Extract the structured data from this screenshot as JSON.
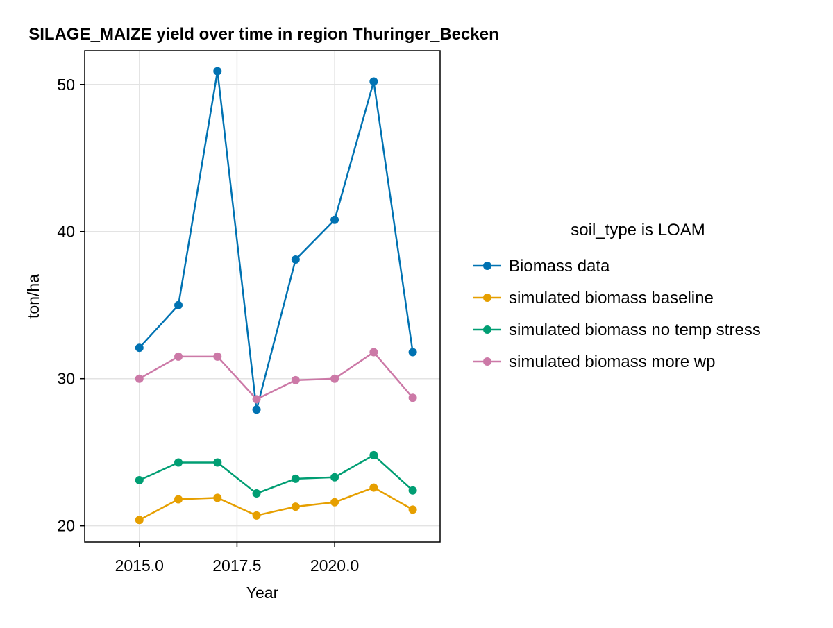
{
  "chart_data": {
    "type": "line",
    "title": "SILAGE_MAIZE yield over time in region Thuringer_Becken",
    "xlabel": "Year",
    "ylabel": "ton/ha",
    "x": [
      2015,
      2016,
      2017,
      2018,
      2019,
      2020,
      2021,
      2022
    ],
    "xlim": [
      2013.6,
      2022.7
    ],
    "ylim": [
      18.9,
      52.3
    ],
    "x_ticks": [
      2015.0,
      2017.5,
      2020.0
    ],
    "x_tick_labels": [
      "2015.0",
      "2017.5",
      "2020.0"
    ],
    "y_ticks": [
      20,
      30,
      40,
      50
    ],
    "y_tick_labels": [
      "20",
      "30",
      "40",
      "50"
    ],
    "grid": true,
    "legend": {
      "title": "soil_type is LOAM",
      "placement": "right"
    },
    "series": [
      {
        "name": "Biomass data",
        "color": "#0072b2",
        "values": [
          32.1,
          35.0,
          50.9,
          27.9,
          38.1,
          40.8,
          50.2,
          31.8
        ]
      },
      {
        "name": "simulated biomass baseline",
        "color": "#e69f00",
        "values": [
          20.4,
          21.8,
          21.9,
          20.7,
          21.3,
          21.6,
          22.6,
          21.1
        ]
      },
      {
        "name": "simulated biomass no temp stress",
        "color": "#009e73",
        "values": [
          23.1,
          24.3,
          24.3,
          22.2,
          23.2,
          23.3,
          24.8,
          22.4
        ]
      },
      {
        "name": "simulated biomass more wp",
        "color": "#cc79a7",
        "values": [
          30.0,
          31.5,
          31.5,
          28.6,
          29.9,
          30.0,
          31.8,
          28.7
        ]
      }
    ]
  }
}
